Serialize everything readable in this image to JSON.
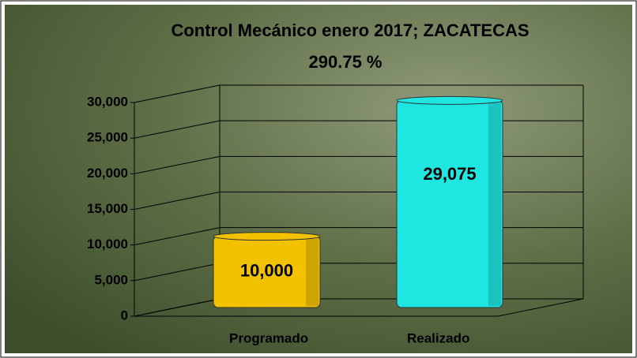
{
  "chart_data": {
    "type": "bar3d",
    "title": "Control Mecánico  enero 2017; ZACATECAS",
    "subtitle": "290.75 %",
    "categories": [
      "Programado",
      "Realizado"
    ],
    "series": [
      {
        "colors": [
          "#f2c200",
          "#1fe6e0"
        ],
        "values": [
          10000,
          29075
        ],
        "value_labels": [
          "10,000",
          "29,075"
        ]
      }
    ],
    "ylim": [
      0,
      30000
    ],
    "yticks": [
      0,
      {
        "value": 5000,
        "label": "5,000"
      },
      {
        "value": 10000,
        "label": "10,000"
      },
      {
        "value": 15000,
        "label": "15,000"
      },
      {
        "value": 20000,
        "label": "20,000"
      },
      {
        "value": 25000,
        "label": "25,000"
      },
      {
        "value": 30000,
        "label": "30,000"
      }
    ],
    "grid": true
  }
}
